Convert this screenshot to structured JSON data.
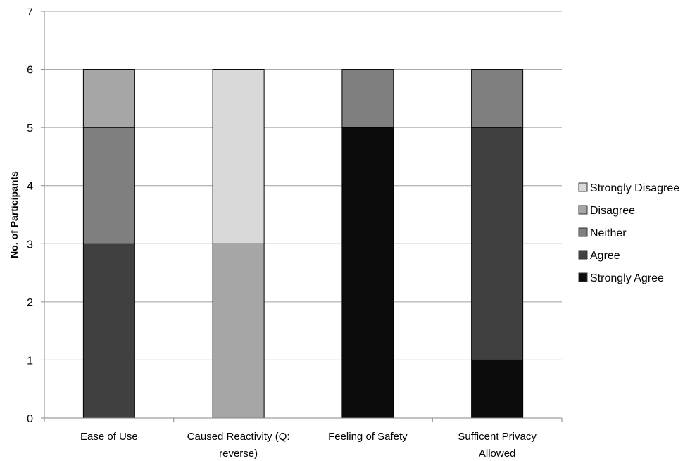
{
  "chart_data": {
    "type": "bar",
    "stacked": true,
    "title": "",
    "xlabel": "",
    "ylabel": "No. of Participants",
    "ylim": [
      0,
      7
    ],
    "yticks": [
      "0",
      "1",
      "2",
      "3",
      "4",
      "5",
      "6",
      "7"
    ],
    "grid": true,
    "legend_position": "right",
    "categories": [
      [
        "Ease of Use"
      ],
      [
        "Caused Reactivity (Q:",
        "reverse)"
      ],
      [
        "Feeling of Safety"
      ],
      [
        "Sufficent Privacy",
        "Allowed"
      ]
    ],
    "series": [
      {
        "name": "Strongly Agree",
        "color": "#0c0c0c",
        "values": [
          0,
          0,
          5,
          1
        ]
      },
      {
        "name": "Agree",
        "color": "#404040",
        "values": [
          3,
          0,
          0,
          4
        ]
      },
      {
        "name": "Neither",
        "color": "#7f7f7f",
        "values": [
          2,
          0,
          1,
          1
        ]
      },
      {
        "name": "Disagree",
        "color": "#a6a6a6",
        "values": [
          1,
          3,
          0,
          0
        ]
      },
      {
        "name": "Strongly Disagree",
        "color": "#d9d9d9",
        "values": [
          0,
          3,
          0,
          0
        ]
      }
    ],
    "legend_order": [
      "Strongly Disagree",
      "Disagree",
      "Neither",
      "Agree",
      "Strongly Agree"
    ],
    "gridline_color": "#a0a0a0",
    "axis_color": "#868686"
  }
}
